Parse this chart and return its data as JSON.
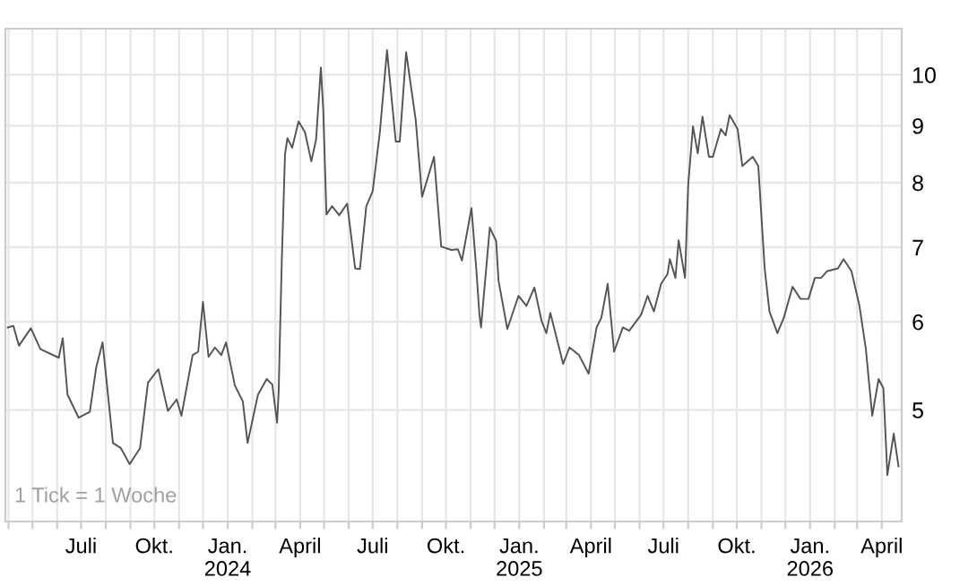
{
  "chart_data": {
    "type": "line",
    "log": "y",
    "grid": true,
    "line_style": "solid",
    "marker": "none",
    "xlim": [
      "2023-03-28",
      "2026-04-26"
    ],
    "ylim": [
      3.97,
      11.0
    ],
    "yticks": [
      5,
      6,
      7,
      8,
      9,
      10
    ],
    "xticks": [
      {
        "value": "2023-04-01",
        "label": null
      },
      {
        "value": "2023-05-01",
        "label": null
      },
      {
        "value": "2023-06-01",
        "label": null
      },
      {
        "value": "2023-07-01",
        "label": "Juli"
      },
      {
        "value": "2023-08-01",
        "label": null
      },
      {
        "value": "2023-09-01",
        "label": null
      },
      {
        "value": "2023-10-01",
        "label": "Okt."
      },
      {
        "value": "2023-11-01",
        "label": null
      },
      {
        "value": "2023-12-01",
        "label": null
      },
      {
        "value": "2024-01-01",
        "label": "Jan.\n2024"
      },
      {
        "value": "2024-02-01",
        "label": null
      },
      {
        "value": "2024-03-01",
        "label": null
      },
      {
        "value": "2024-04-01",
        "label": "April"
      },
      {
        "value": "2024-05-01",
        "label": null
      },
      {
        "value": "2024-06-01",
        "label": null
      },
      {
        "value": "2024-07-01",
        "label": "Juli"
      },
      {
        "value": "2024-08-01",
        "label": null
      },
      {
        "value": "2024-09-01",
        "label": null
      },
      {
        "value": "2024-10-01",
        "label": "Okt."
      },
      {
        "value": "2024-11-01",
        "label": null
      },
      {
        "value": "2024-12-01",
        "label": null
      },
      {
        "value": "2025-01-01",
        "label": "Jan.\n2025"
      },
      {
        "value": "2025-02-01",
        "label": null
      },
      {
        "value": "2025-03-01",
        "label": null
      },
      {
        "value": "2025-04-01",
        "label": "April"
      },
      {
        "value": "2025-05-01",
        "label": null
      },
      {
        "value": "2025-06-01",
        "label": null
      },
      {
        "value": "2025-07-01",
        "label": "Juli"
      },
      {
        "value": "2025-08-01",
        "label": null
      },
      {
        "value": "2025-09-01",
        "label": null
      },
      {
        "value": "2025-10-01",
        "label": "Okt."
      },
      {
        "value": "2025-11-01",
        "label": null
      },
      {
        "value": "2025-12-01",
        "label": null
      },
      {
        "value": "2026-01-01",
        "label": "Jan.\n2026"
      },
      {
        "value": "2026-02-01",
        "label": null
      },
      {
        "value": "2026-03-01",
        "label": null
      },
      {
        "value": "2026-04-01",
        "label": "April"
      }
    ],
    "annotations": [
      "1 Tick = 1 Woche"
    ],
    "series": [
      {
        "color": "#555555",
        "x": [
          "2023-03-31",
          "2023-04-07",
          "2023-04-14",
          "2023-04-29",
          "2023-05-11",
          "2023-06-03",
          "2023-06-08",
          "2023-06-14",
          "2023-06-28",
          "2023-07-12",
          "2023-07-20",
          "2023-07-28",
          "2023-08-10",
          "2023-08-20",
          "2023-08-31",
          "2023-09-13",
          "2023-09-23",
          "2023-10-06",
          "2023-10-18",
          "2023-10-29",
          "2023-11-04",
          "2023-11-18",
          "2023-11-25",
          "2023-12-01",
          "2023-12-08",
          "2023-12-16",
          "2023-12-24",
          "2023-12-30",
          "2024-01-10",
          "2024-01-20",
          "2024-01-26",
          "2024-02-08",
          "2024-02-19",
          "2024-02-26",
          "2024-03-03",
          "2024-03-05",
          "2024-03-07",
          "2024-03-09",
          "2024-03-13",
          "2024-03-16",
          "2024-03-22",
          "2024-03-30",
          "2024-04-07",
          "2024-04-15",
          "2024-04-21",
          "2024-04-27",
          "2024-04-30",
          "2024-05-04",
          "2024-05-11",
          "2024-05-20",
          "2024-05-30",
          "2024-06-09",
          "2024-06-15",
          "2024-06-23",
          "2024-07-01",
          "2024-07-10",
          "2024-07-19",
          "2024-07-30",
          "2024-08-04",
          "2024-08-12",
          "2024-08-24",
          "2024-09-01",
          "2024-09-16",
          "2024-09-25",
          "2024-10-08",
          "2024-10-16",
          "2024-10-21",
          "2024-11-02",
          "2024-11-08",
          "2024-11-12",
          "2024-11-14",
          "2024-11-25",
          "2024-12-03",
          "2024-12-06",
          "2024-12-17",
          "2024-12-31",
          "2025-01-10",
          "2025-01-20",
          "2025-01-29",
          "2025-02-04",
          "2025-02-09",
          "2025-02-25",
          "2025-03-05",
          "2025-03-17",
          "2025-03-29",
          "2025-04-08",
          "2025-04-14",
          "2025-04-22",
          "2025-04-30",
          "2025-05-11",
          "2025-05-19",
          "2025-06-03",
          "2025-06-11",
          "2025-06-19",
          "2025-06-28",
          "2025-07-06",
          "2025-07-09",
          "2025-07-16",
          "2025-07-20",
          "2025-07-28",
          "2025-08-01",
          "2025-08-07",
          "2025-08-13",
          "2025-08-19",
          "2025-08-27",
          "2025-09-01",
          "2025-09-11",
          "2025-09-17",
          "2025-09-22",
          "2025-10-02",
          "2025-10-08",
          "2025-10-21",
          "2025-10-28",
          "2025-11-05",
          "2025-11-11",
          "2025-11-21",
          "2025-11-29",
          "2025-12-10",
          "2025-12-20",
          "2025-12-30",
          "2026-01-07",
          "2026-01-15",
          "2026-01-22",
          "2026-02-05",
          "2026-02-12",
          "2026-02-22",
          "2026-03-04",
          "2026-03-12",
          "2026-03-20",
          "2026-03-28",
          "2026-04-03",
          "2026-04-08",
          "2026-04-16",
          "2026-04-22"
        ],
        "values": [
          5.93,
          5.95,
          5.71,
          5.92,
          5.67,
          5.57,
          5.8,
          5.16,
          4.92,
          4.98,
          5.46,
          5.75,
          4.67,
          4.62,
          4.47,
          4.62,
          5.29,
          5.44,
          4.99,
          5.11,
          4.94,
          5.6,
          5.64,
          6.25,
          5.58,
          5.69,
          5.6,
          5.75,
          5.26,
          5.09,
          4.67,
          5.16,
          5.33,
          5.27,
          4.87,
          5.19,
          5.99,
          6.83,
          8.49,
          8.77,
          8.6,
          9.08,
          8.88,
          8.36,
          8.75,
          10.15,
          9.29,
          7.49,
          7.62,
          7.48,
          7.66,
          6.7,
          6.69,
          7.62,
          7.86,
          8.88,
          10.52,
          8.71,
          8.71,
          10.48,
          9.11,
          7.77,
          8.44,
          7.01,
          6.96,
          6.97,
          6.81,
          7.59,
          6.7,
          6.09,
          5.93,
          7.29,
          7.09,
          6.53,
          5.91,
          6.33,
          6.2,
          6.44,
          6.01,
          5.86,
          6.11,
          5.5,
          5.69,
          5.6,
          5.39,
          5.93,
          6.05,
          6.49,
          5.64,
          5.93,
          5.89,
          6.09,
          6.33,
          6.13,
          6.49,
          6.62,
          6.83,
          6.57,
          7.1,
          6.57,
          7.96,
          8.99,
          8.5,
          9.17,
          8.44,
          8.44,
          8.94,
          8.82,
          9.2,
          8.94,
          8.28,
          8.44,
          8.28,
          6.7,
          6.13,
          5.86,
          6.05,
          6.45,
          6.29,
          6.29,
          6.57,
          6.57,
          6.66,
          6.7,
          6.83,
          6.66,
          6.2,
          5.67,
          4.94,
          5.33,
          5.23,
          4.37,
          4.76,
          4.45
        ]
      }
    ]
  }
}
